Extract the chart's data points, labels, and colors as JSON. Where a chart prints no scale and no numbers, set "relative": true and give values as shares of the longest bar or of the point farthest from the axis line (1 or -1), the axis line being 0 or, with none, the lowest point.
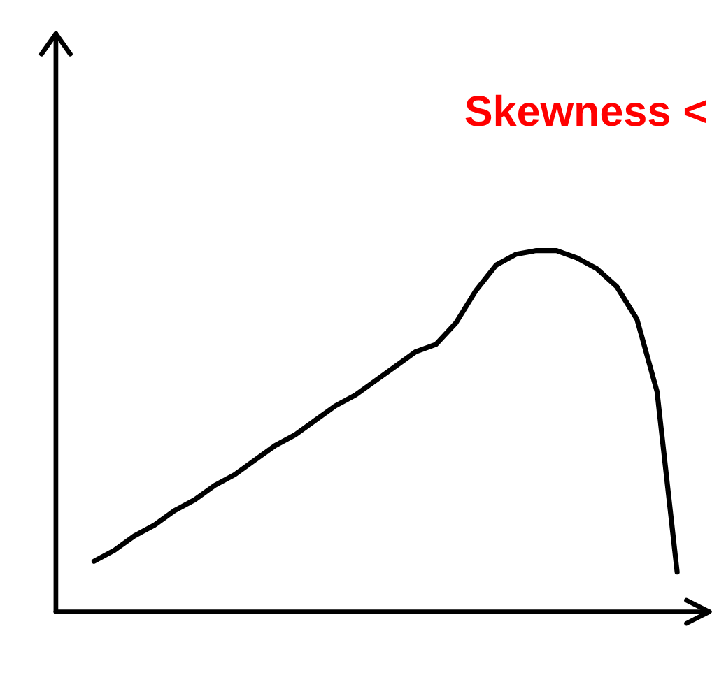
{
  "chart_data": {
    "type": "line",
    "title": "Skewness <",
    "relative": true,
    "categories": [
      null,
      null,
      null,
      null,
      null,
      null,
      null,
      null,
      null,
      null,
      null,
      null,
      null,
      null,
      null,
      null,
      null,
      null,
      null,
      null,
      null,
      null,
      null,
      null,
      null,
      null,
      null,
      null,
      null,
      null
    ],
    "series": [
      {
        "color": "#000000",
        "values": [
          0.14,
          0.17,
          0.21,
          0.24,
          0.28,
          0.31,
          0.35,
          0.38,
          0.42,
          0.46,
          0.49,
          0.53,
          0.57,
          0.6,
          0.64,
          0.68,
          0.72,
          0.74,
          0.8,
          0.89,
          0.96,
          0.99,
          1.0,
          1.0,
          0.98,
          0.95,
          0.9,
          0.81,
          0.61,
          0.11
        ]
      }
    ],
    "tick_labels": false,
    "marker": "none",
    "line_style": "solid"
  }
}
